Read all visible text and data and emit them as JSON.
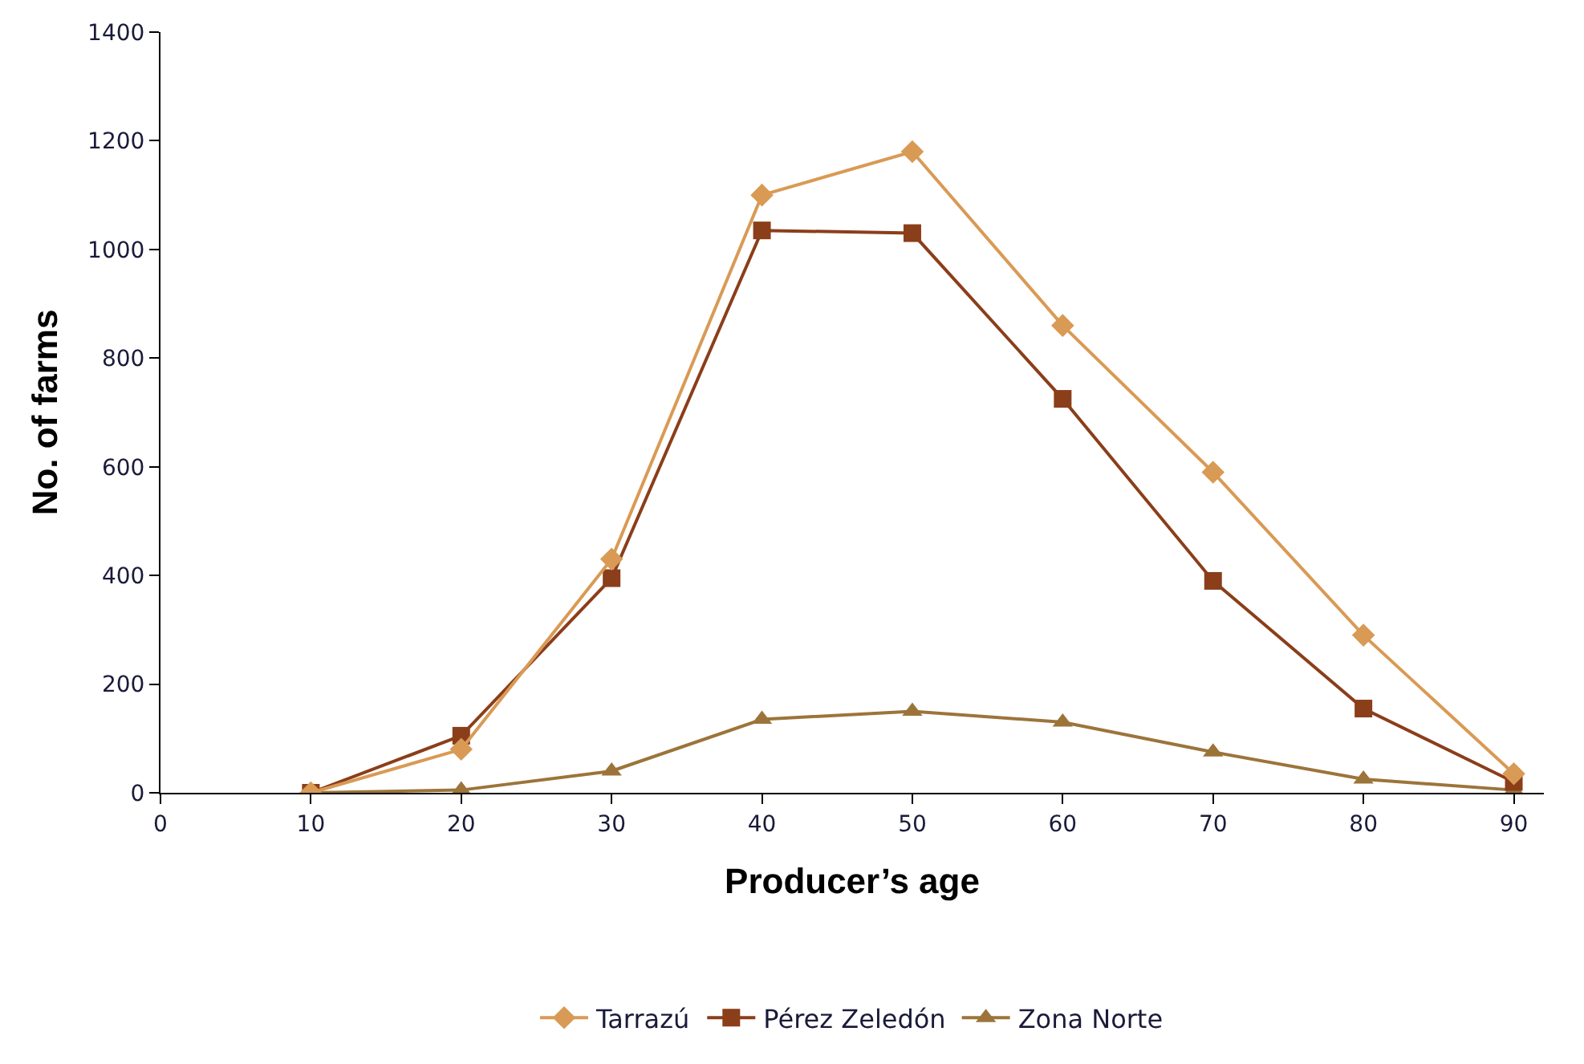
{
  "chart_data": {
    "type": "line",
    "xlabel": "Producer’s age",
    "ylabel": "No. of farms",
    "x": [
      10,
      20,
      30,
      40,
      50,
      60,
      70,
      80,
      90
    ],
    "series": [
      {
        "name": "Tarrazú",
        "color": "#d99a55",
        "marker": "diamond",
        "values": [
          0,
          80,
          430,
          1100,
          1180,
          860,
          590,
          290,
          35
        ]
      },
      {
        "name": "Pérez Zeledón",
        "color": "#8b3e1a",
        "marker": "square",
        "values": [
          0,
          105,
          395,
          1035,
          1030,
          725,
          390,
          155,
          20
        ]
      },
      {
        "name": "Zona Norte",
        "color": "#9c743a",
        "marker": "triangle",
        "values": [
          0,
          5,
          40,
          135,
          150,
          130,
          75,
          25,
          5
        ]
      }
    ],
    "xlim": [
      0,
      92
    ],
    "xticks": [
      0,
      10,
      20,
      30,
      40,
      50,
      60,
      70,
      80,
      90
    ],
    "ylim": [
      0,
      1400
    ],
    "yticks": [
      0,
      200,
      400,
      600,
      800,
      1000,
      1200,
      1400
    ],
    "grid": false,
    "legend": "bottom",
    "line_style": "solid"
  }
}
